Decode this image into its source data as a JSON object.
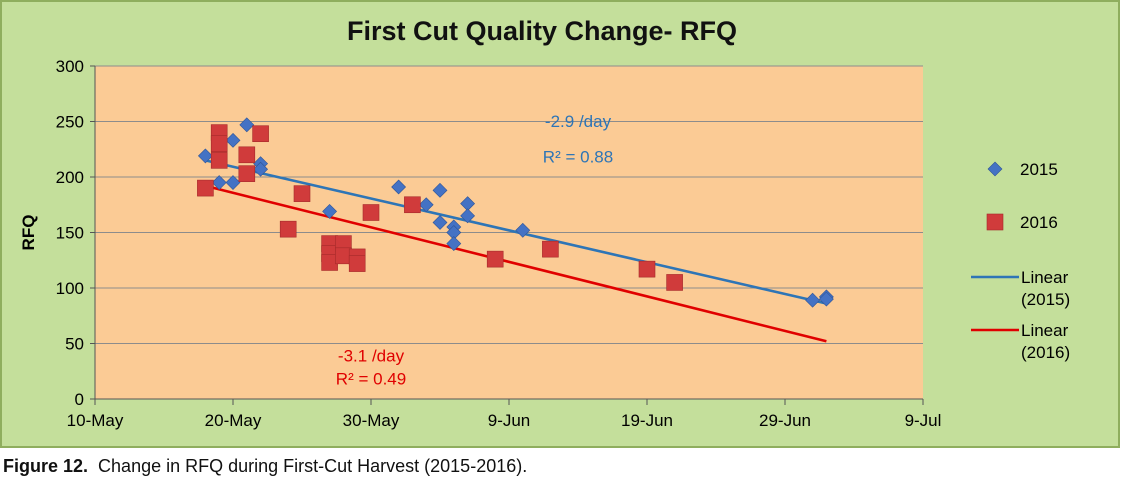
{
  "chart_data": {
    "type": "scatter",
    "title": "First Cut Quality Change- RFQ",
    "xlabel": "",
    "ylabel": "RFQ",
    "x_is_date": true,
    "xlim": [
      "10-May",
      "9-Jul"
    ],
    "ylim": [
      0,
      300
    ],
    "x_ticks": [
      "10-May",
      "20-May",
      "30-May",
      "9-Jun",
      "19-Jun",
      "29-Jun",
      "9-Jul"
    ],
    "y_ticks": [
      0,
      50,
      100,
      150,
      200,
      250,
      300
    ],
    "grid": true,
    "legend_position": "right",
    "series": [
      {
        "name": "2015",
        "marker": "diamond",
        "color": "#4472c4",
        "points": [
          [
            "18-May",
            219
          ],
          [
            "19-May",
            195
          ],
          [
            "20-May",
            233
          ],
          [
            "20-May",
            195
          ],
          [
            "21-May",
            247
          ],
          [
            "22-May",
            212
          ],
          [
            "22-May",
            207
          ],
          [
            "27-May",
            169
          ],
          [
            "1-Jun",
            191
          ],
          [
            "3-Jun",
            175
          ],
          [
            "4-Jun",
            188
          ],
          [
            "4-Jun",
            159
          ],
          [
            "5-Jun",
            155
          ],
          [
            "5-Jun",
            150
          ],
          [
            "5-Jun",
            140
          ],
          [
            "6-Jun",
            176
          ],
          [
            "6-Jun",
            165
          ],
          [
            "10-Jun",
            152
          ],
          [
            "1-Jul",
            89
          ],
          [
            "2-Jul",
            92
          ],
          [
            "2-Jul",
            90
          ]
        ]
      },
      {
        "name": "2016",
        "marker": "square",
        "color": "#d03b3b",
        "points": [
          [
            "18-May",
            190
          ],
          [
            "19-May",
            240
          ],
          [
            "19-May",
            230
          ],
          [
            "19-May",
            215
          ],
          [
            "21-May",
            220
          ],
          [
            "21-May",
            203
          ],
          [
            "22-May",
            239
          ],
          [
            "24-May",
            153
          ],
          [
            "25-May",
            185
          ],
          [
            "27-May",
            140
          ],
          [
            "27-May",
            131
          ],
          [
            "27-May",
            123
          ],
          [
            "28-May",
            140
          ],
          [
            "28-May",
            129
          ],
          [
            "29-May",
            128
          ],
          [
            "29-May",
            122
          ],
          [
            "30-May",
            168
          ],
          [
            "2-Jun",
            175
          ],
          [
            "8-Jun",
            126
          ],
          [
            "12-Jun",
            135
          ],
          [
            "19-Jun",
            117
          ],
          [
            "21-Jun",
            105
          ]
        ]
      },
      {
        "name": "Linear\n(2015)",
        "type": "line",
        "color": "#2e75b6",
        "points": [
          [
            "18-May",
            215
          ],
          [
            "2-Jul",
            86
          ]
        ]
      },
      {
        "name": "Linear\n(2016)",
        "type": "line",
        "color": "#e00000",
        "points": [
          [
            "18-May",
            192
          ],
          [
            "2-Jul",
            52
          ]
        ]
      }
    ],
    "annotations": [
      {
        "text": "-2.9 /day",
        "color": "#2e75b6",
        "anchor": [
          "14-Jun",
          245
        ]
      },
      {
        "text": "R² = 0.88",
        "color": "#2e75b6",
        "anchor": [
          "14-Jun",
          213
        ]
      },
      {
        "text": "-3.1 /day",
        "color": "#e00000",
        "anchor": [
          "30-May",
          34
        ]
      },
      {
        "text": "R² = 0.49",
        "color": "#e00000",
        "anchor": [
          "30-May",
          13
        ]
      }
    ]
  },
  "caption": {
    "label": "Figure 12.",
    "text": "Change in RFQ during First-Cut Harvest (2015-2016)."
  }
}
